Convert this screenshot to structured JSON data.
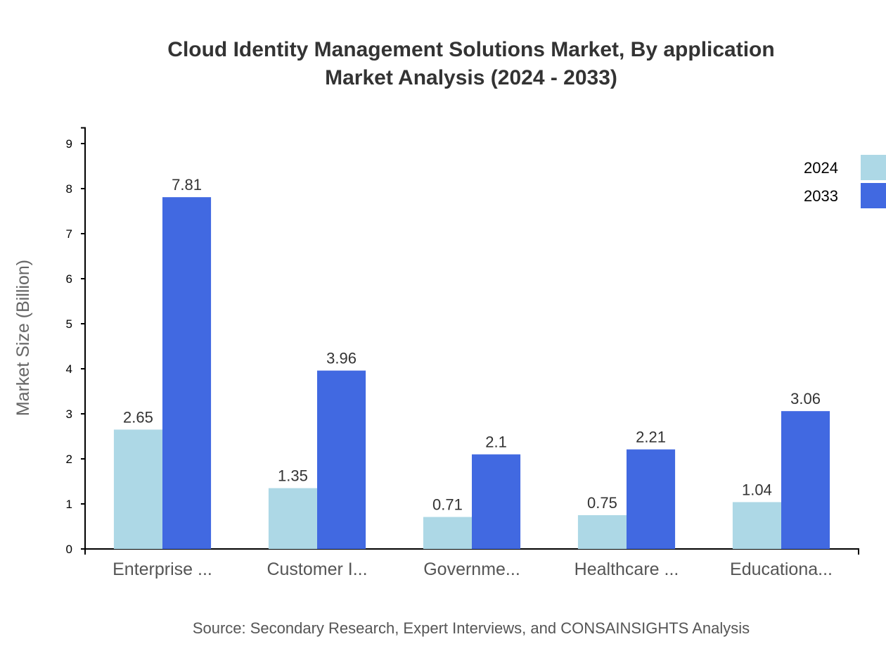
{
  "chart_data": {
    "type": "bar",
    "title": [
      "Cloud Identity Management Solutions Market, By application",
      "Market Analysis (2024 - 2033)"
    ],
    "xlabel": "",
    "ylabel": "Market Size (Billion)",
    "ylim": [
      0,
      9.35
    ],
    "yticks": [
      0,
      1,
      2,
      3,
      4,
      5,
      6,
      7,
      8,
      9
    ],
    "categories": [
      "Enterprise ...",
      "Customer I...",
      "Governme...",
      "Healthcare ...",
      "Educationa..."
    ],
    "series": [
      {
        "name": "2024",
        "color": "#add8e6",
        "values": [
          2.65,
          1.35,
          0.71,
          0.75,
          1.04
        ]
      },
      {
        "name": "2033",
        "color": "#4169e1",
        "values": [
          7.81,
          3.96,
          2.1,
          2.21,
          3.06
        ]
      }
    ],
    "legend_position": "top-right",
    "grid": false,
    "source": "Source: Secondary Research, Expert Interviews, and CONSAINSIGHTS Analysis"
  }
}
